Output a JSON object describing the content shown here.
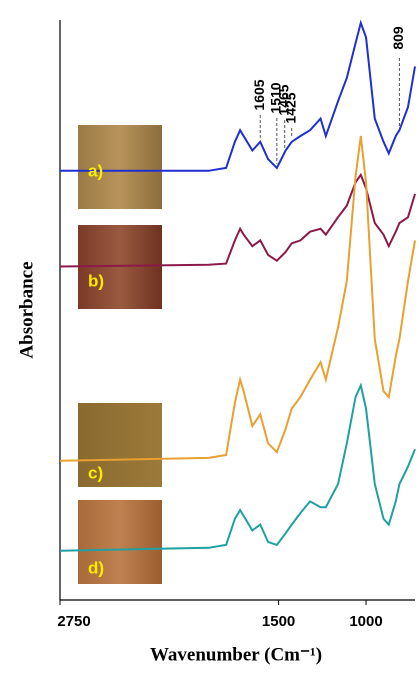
{
  "chart_data": {
    "type": "line",
    "x_label": "Wavenumber (Cm⁻¹)",
    "y_label": "Absorbance",
    "x": [
      2750,
      1900,
      1800,
      1750,
      1720,
      1700,
      1650,
      1605,
      1560,
      1510,
      1460,
      1425,
      1375,
      1320,
      1260,
      1230,
      1160,
      1110,
      1060,
      1030,
      1000,
      950,
      900,
      870,
      830,
      809,
      760,
      720
    ],
    "series": [
      {
        "name": "a)",
        "color": "#1f2fd0",
        "values": [
          7.4,
          7.4,
          7.45,
          7.9,
          8.1,
          8.0,
          7.75,
          7.9,
          7.6,
          7.45,
          7.75,
          7.9,
          8.0,
          8.1,
          8.3,
          8.0,
          8.6,
          9.0,
          9.6,
          9.95,
          9.7,
          8.3,
          7.9,
          7.7,
          8.0,
          8.1,
          8.5,
          9.2
        ]
      },
      {
        "name": "b)",
        "color": "#8b1a4a",
        "values": [
          5.75,
          5.78,
          5.8,
          6.2,
          6.4,
          6.3,
          6.1,
          6.2,
          5.95,
          5.85,
          6.0,
          6.15,
          6.2,
          6.35,
          6.4,
          6.3,
          6.6,
          6.8,
          7.2,
          7.33,
          7.1,
          6.5,
          6.3,
          6.1,
          6.35,
          6.5,
          6.6,
          7.0
        ]
      },
      {
        "name": "c)",
        "color": "#e8a030",
        "values": [
          2.4,
          2.45,
          2.5,
          3.4,
          3.8,
          3.6,
          3.0,
          3.2,
          2.7,
          2.55,
          2.95,
          3.3,
          3.5,
          3.8,
          4.1,
          3.8,
          4.7,
          5.5,
          7.3,
          8.0,
          7.2,
          4.5,
          3.6,
          3.5,
          4.2,
          4.5,
          5.5,
          6.2
        ]
      },
      {
        "name": "d)",
        "color": "#20a0a0",
        "values": [
          0.85,
          0.9,
          0.95,
          1.4,
          1.55,
          1.45,
          1.2,
          1.3,
          1.0,
          0.95,
          1.15,
          1.3,
          1.5,
          1.7,
          1.6,
          1.6,
          2.0,
          2.7,
          3.5,
          3.7,
          3.3,
          2.0,
          1.4,
          1.3,
          1.7,
          2.0,
          2.3,
          2.6
        ]
      }
    ],
    "annotations": [
      1605,
      1510,
      1465,
      1425,
      809
    ],
    "xlim": [
      2750,
      720
    ],
    "xticks": [
      2750,
      1500,
      1000
    ],
    "ylim": [
      0,
      10
    ]
  }
}
